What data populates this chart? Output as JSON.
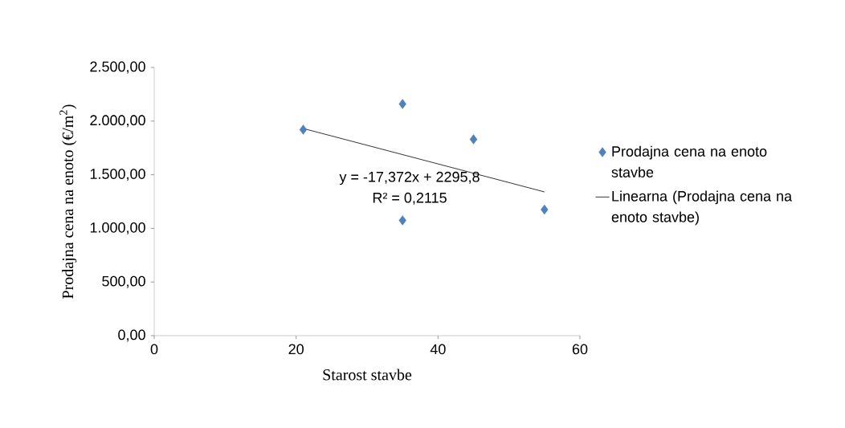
{
  "chart_data": {
    "type": "scatter",
    "xlabel": "Starost stavbe",
    "ylabel": "Prodajna cena na enoto (€/m$^{2}$)",
    "xlim": [
      0,
      60
    ],
    "xticks": [
      0,
      20,
      40,
      60
    ],
    "ylim": [
      0,
      2500
    ],
    "yticks": [
      {
        "value": 0,
        "label": "0,00"
      },
      {
        "value": 500,
        "label": "500,00"
      },
      {
        "value": 1000,
        "label": "1.000,00"
      },
      {
        "value": 1500,
        "label": "1.500,00"
      },
      {
        "value": 2000,
        "label": "2.000,00"
      },
      {
        "value": 2500,
        "label": "2.500,00"
      }
    ],
    "x": [
      21,
      35,
      35,
      45,
      55
    ],
    "series": [
      {
        "name": "Prodajna cena na enoto stavbe",
        "color": "#4f81bd",
        "marker": "diamond",
        "values": [
          1920,
          2160,
          1075,
          1830,
          1175
        ]
      },
      {
        "name": "Linearna (Prodajna cena na enoto stavbe)",
        "type": "line",
        "color": "#000000",
        "marker": "none",
        "x": [
          21,
          55
        ],
        "values": [
          1931,
          1340
        ]
      }
    ],
    "annotations": [
      "y = -17,372x + 2295,8",
      "R² = 0,2115"
    ],
    "grid": false,
    "legend": "right"
  }
}
